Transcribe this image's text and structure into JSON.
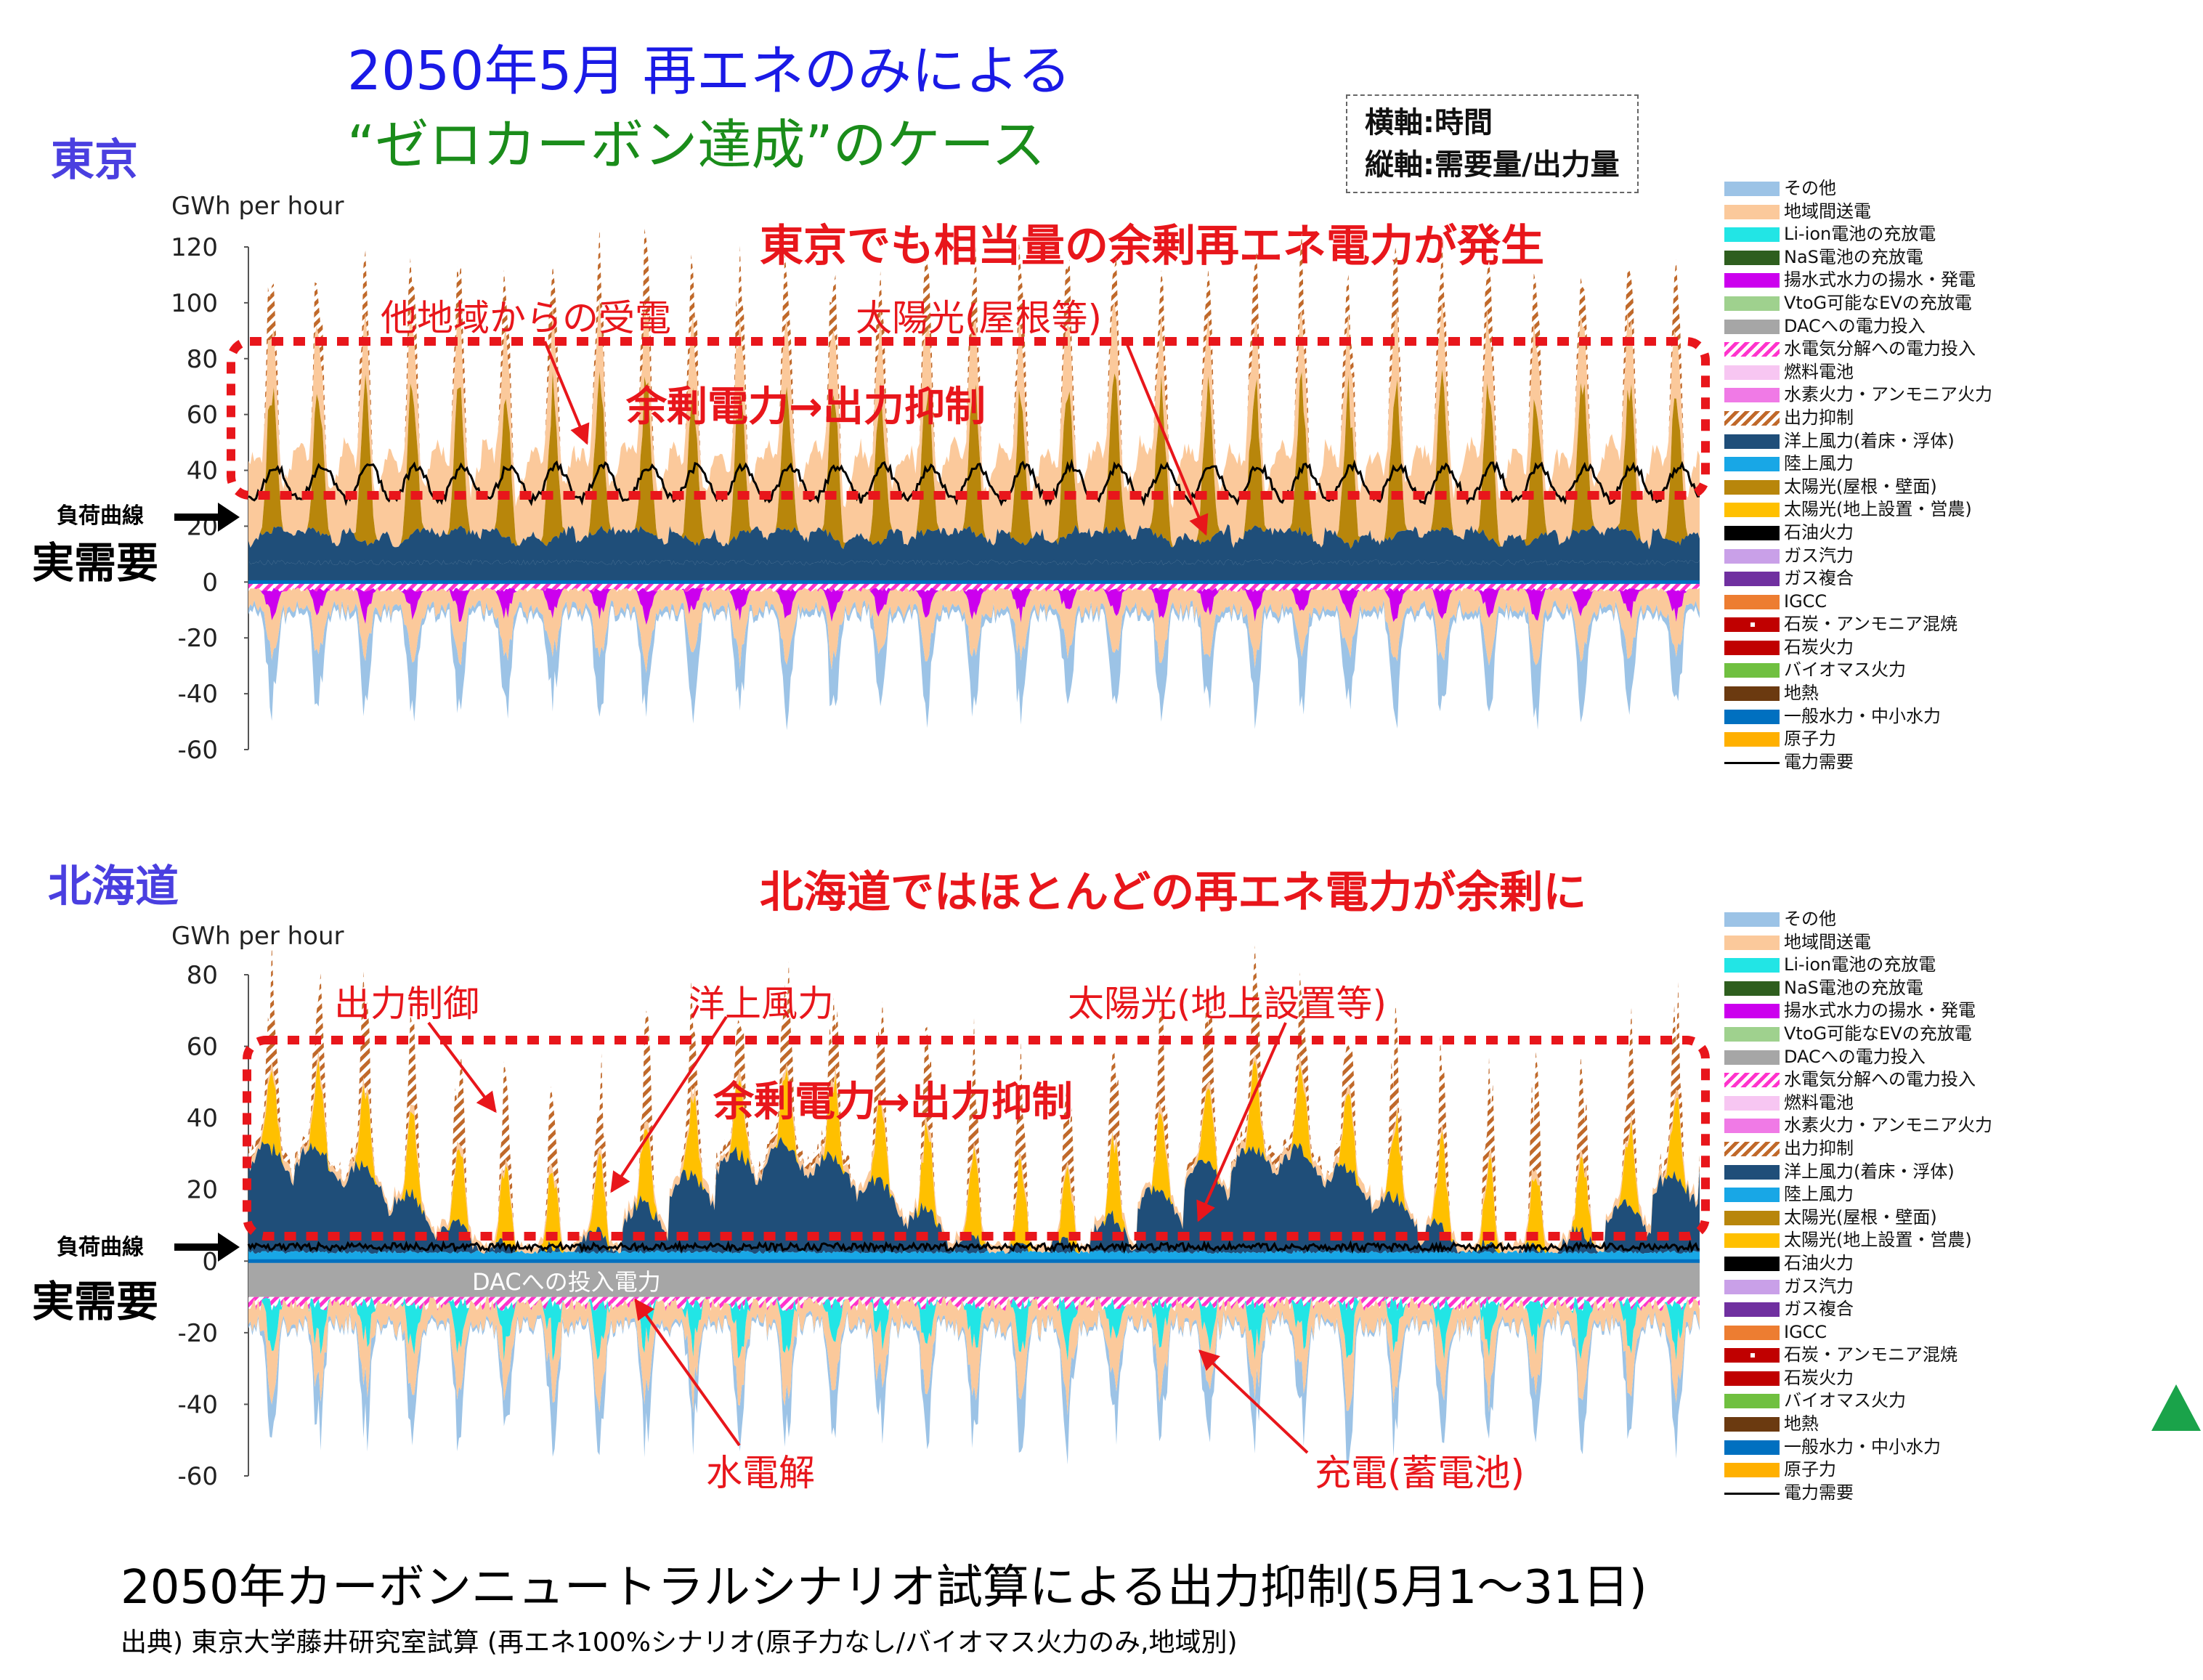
{
  "title_line1": "2050年5月 再エネのみによる",
  "title_line2": "“ゼロカーボン達成”のケース",
  "axis_note": {
    "x": "横軸:時間",
    "y": "縦軸:需要量/出力量"
  },
  "regions": {
    "tokyo": "東京",
    "hokkaido": "北海道"
  },
  "headlines": {
    "tokyo": "東京でも相当量の余剰再エネ電力が発生",
    "hokkaido": "北海道ではほとんどの再エネ電力が余剰に"
  },
  "labels": {
    "load_curve": "負荷曲線",
    "actual_demand": "実需要",
    "surplus": "余剰電力→出力抑制",
    "tokyo_import": "他地域からの受電",
    "tokyo_solar_roof": "太陽光(屋根等)",
    "hk_curtail": "出力制御",
    "hk_offshore": "洋上風力",
    "hk_solar_ground": "太陽光(地上設置等)",
    "hk_electrolysis": "水電解",
    "hk_charge": "充電(蓄電池)",
    "hk_dac": "DACへの投入電力"
  },
  "legend": [
    {
      "label": "その他",
      "color": "#9cc3e6",
      "style": "solid"
    },
    {
      "label": "地域間送電",
      "color": "#fbc99b",
      "style": "solid"
    },
    {
      "label": "Li-ion電池の充放電",
      "color": "#22e5e5",
      "style": "solid"
    },
    {
      "label": "NaS電池の充放電",
      "color": "#2e5e1e",
      "style": "solid"
    },
    {
      "label": "揚水式水力の揚水・発電",
      "color": "#cc00ee",
      "style": "solid"
    },
    {
      "label": "VtoG可能なEVの充放電",
      "color": "#9fd18e",
      "style": "solid"
    },
    {
      "label": "DACへの電力投入",
      "color": "#a6a6a6",
      "style": "solid"
    },
    {
      "label": "水電気分解への電力投入",
      "color": "#ff33cc",
      "style": "hatch"
    },
    {
      "label": "燃料電池",
      "color": "#f7c6f2",
      "style": "solid"
    },
    {
      "label": "水素火力・アンモニア火力",
      "color": "#f07ae6",
      "style": "solid"
    },
    {
      "label": "出力抑制",
      "color": "#c0692a",
      "style": "hatch"
    },
    {
      "label": "洋上風力(着床・浮体)",
      "color": "#1f4e79",
      "style": "solid"
    },
    {
      "label": "陸上風力",
      "color": "#18a7e6",
      "style": "solid"
    },
    {
      "label": "太陽光(屋根・壁面)",
      "color": "#b8860b",
      "style": "solid"
    },
    {
      "label": "太陽光(地上設置・営農)",
      "color": "#ffc000",
      "style": "solid"
    },
    {
      "label": "石油火力",
      "color": "#000000",
      "style": "solid"
    },
    {
      "label": "ガス汽力",
      "color": "#c9a0e8",
      "style": "solid"
    },
    {
      "label": "ガス複合",
      "color": "#7030a0",
      "style": "solid"
    },
    {
      "label": "IGCC",
      "color": "#ed7d31",
      "style": "solid"
    },
    {
      "label": "石炭・アンモニア混焼",
      "color": "#c00000",
      "style": "dash"
    },
    {
      "label": "石炭火力",
      "color": "#c00000",
      "style": "solid"
    },
    {
      "label": "バイオマス火力",
      "color": "#70c040",
      "style": "solid"
    },
    {
      "label": "地熱",
      "color": "#6b3a10",
      "style": "solid"
    },
    {
      "label": "一般水力・中小水力",
      "color": "#0070c0",
      "style": "solid"
    },
    {
      "label": "原子力",
      "color": "#ffb000",
      "style": "solid"
    },
    {
      "label": "電力需要",
      "color": "#000000",
      "style": "line"
    }
  ],
  "chart_data": [
    {
      "type": "area",
      "region": "東京",
      "ylabel": "GWh per hour",
      "ylim": [
        -60,
        120
      ],
      "yticks": [
        -60,
        -40,
        -20,
        0,
        20,
        40,
        60,
        80,
        100,
        120
      ],
      "days": 31,
      "demand_range": [
        28,
        40
      ],
      "solar_peak": [
        55,
        65
      ],
      "surplus_zone": [
        32,
        83
      ],
      "negative_min": -42
    },
    {
      "type": "area",
      "region": "北海道",
      "ylabel": "GWh per hour",
      "ylim": [
        -60,
        80
      ],
      "yticks": [
        -60,
        -40,
        -20,
        0,
        20,
        40,
        60,
        80
      ],
      "days": 31,
      "demand_range": [
        3,
        5
      ],
      "dac_input": -10,
      "surplus_zone": [
        7,
        61
      ],
      "negative_min": -42
    }
  ],
  "footer": {
    "title": "2050年カーボンニュートラルシナリオ試算による出力抑制(5月1〜31日)",
    "source": "出典) 東京大学藤井研究室試算 (再エネ100%シナリオ(原子力なし/バイオマス火力のみ,地域別)"
  }
}
